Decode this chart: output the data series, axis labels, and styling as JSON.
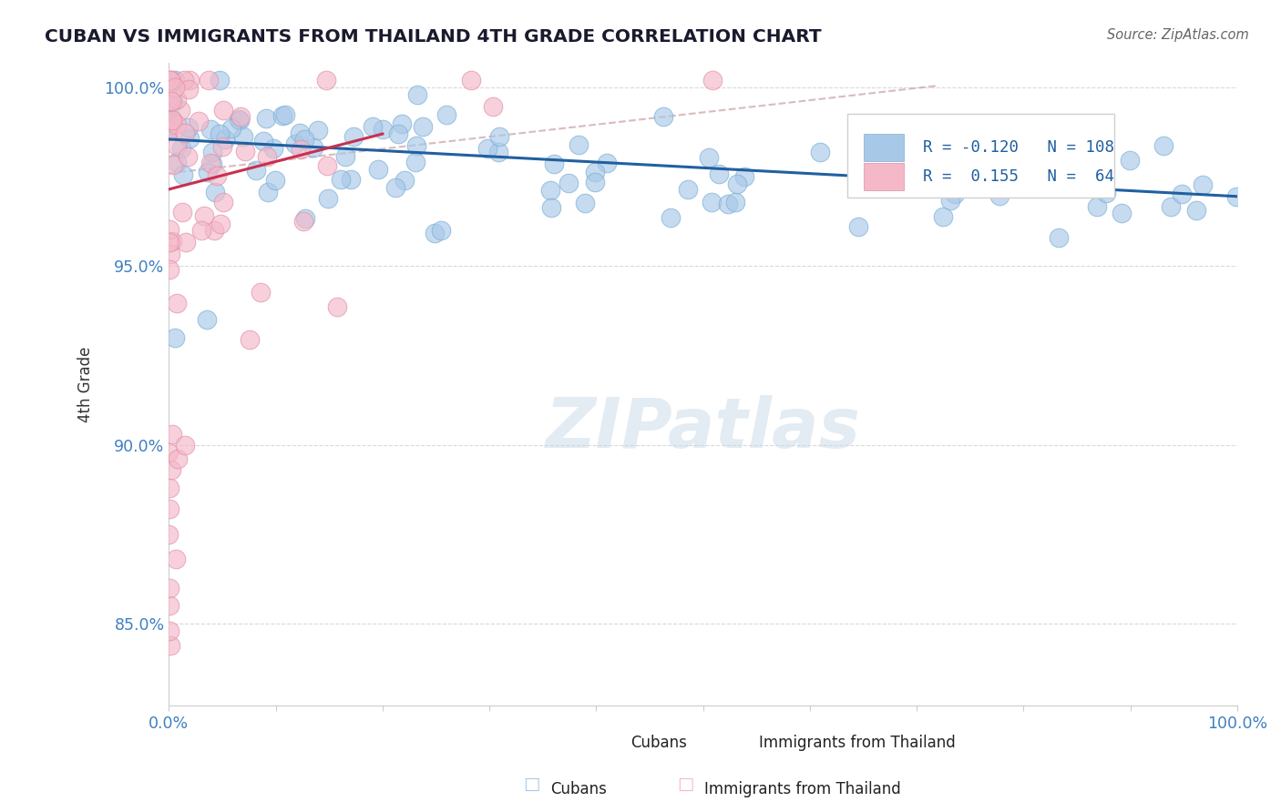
{
  "title": "CUBAN VS IMMIGRANTS FROM THAILAND 4TH GRADE CORRELATION CHART",
  "source": "Source: ZipAtlas.com",
  "ylabel": "4th Grade",
  "blue_color": "#a8c8e8",
  "blue_edge_color": "#7aafd4",
  "pink_color": "#f4b8c8",
  "pink_edge_color": "#e090a8",
  "blue_line_color": "#2060a0",
  "pink_line_color": "#c83050",
  "dashed_line_color": "#c8a0a0",
  "ytick_color": "#4080c0",
  "background_color": "#ffffff",
  "grid_color": "#d0d0d0",
  "legend_edge_color": "#d0d0d0",
  "watermark_color": "#c8d8e8",
  "blue_line_x": [
    0.0,
    1.0
  ],
  "blue_line_y": [
    0.9855,
    0.9695
  ],
  "pink_line_x": [
    0.0,
    0.2
  ],
  "pink_line_y": [
    0.9715,
    0.987
  ],
  "dashed_line_x": [
    0.0,
    0.72
  ],
  "dashed_line_y": [
    0.976,
    1.0005
  ],
  "xlim": [
    0.0,
    1.0
  ],
  "ylim": [
    0.827,
    1.007
  ],
  "yticks": [
    0.85,
    0.9,
    0.95,
    1.0
  ],
  "ytick_labels": [
    "85.0%",
    "90.0%",
    "95.0%",
    "100.0%"
  ]
}
